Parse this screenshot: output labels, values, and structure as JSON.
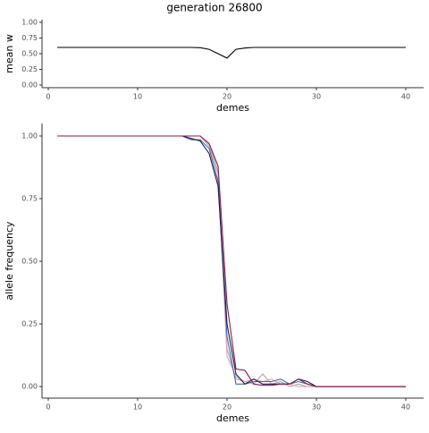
{
  "title": "generation 26800",
  "chart_data": [
    {
      "type": "line",
      "xlabel": "demes",
      "ylabel": "mean w",
      "x": [
        1,
        2,
        3,
        4,
        5,
        6,
        7,
        8,
        9,
        10,
        11,
        12,
        13,
        14,
        15,
        16,
        17,
        18,
        19,
        20,
        21,
        22,
        23,
        24,
        25,
        26,
        27,
        28,
        29,
        30,
        31,
        32,
        33,
        34,
        35,
        36,
        37,
        38,
        39,
        40
      ],
      "series": [
        {
          "color": "#000000",
          "values": [
            0.6,
            0.6,
            0.6,
            0.6,
            0.6,
            0.6,
            0.6,
            0.6,
            0.6,
            0.6,
            0.6,
            0.6,
            0.6,
            0.6,
            0.6,
            0.6,
            0.595,
            0.57,
            0.5,
            0.43,
            0.57,
            0.59,
            0.6,
            0.6,
            0.6,
            0.6,
            0.6,
            0.6,
            0.6,
            0.6,
            0.6,
            0.6,
            0.6,
            0.6,
            0.6,
            0.6,
            0.6,
            0.6,
            0.6,
            0.6
          ]
        }
      ],
      "xlim": [
        -0.7,
        42
      ],
      "xticks": [
        0,
        10,
        20,
        30,
        40
      ],
      "ylim": [
        -0.043,
        1.043
      ],
      "yticks": [
        {
          "value": 0,
          "label": "0.00"
        },
        {
          "value": 0.25,
          "label": "0.25"
        },
        {
          "value": 0.5,
          "label": "0.50"
        },
        {
          "value": 0.75,
          "label": "0.75"
        },
        {
          "value": 1,
          "label": "1.00"
        }
      ]
    },
    {
      "type": "line",
      "xlabel": "demes",
      "ylabel": "allele frequency",
      "x": [
        1,
        2,
        3,
        4,
        5,
        6,
        7,
        8,
        9,
        10,
        11,
        12,
        13,
        14,
        15,
        16,
        17,
        18,
        19,
        20,
        21,
        22,
        23,
        24,
        25,
        26,
        27,
        28,
        29,
        30,
        31,
        32,
        33,
        34,
        35,
        36,
        37,
        38,
        39,
        40
      ],
      "series": [
        {
          "color": "#aaaaaa",
          "values": [
            1,
            1,
            1,
            1,
            1,
            1,
            1,
            1,
            1,
            1,
            1,
            1,
            1,
            1,
            1,
            1,
            1,
            0.96,
            0.85,
            0.15,
            0.03,
            0.02,
            0.01,
            0.05,
            0.01,
            0.02,
            0,
            0.01,
            0,
            0,
            0,
            0,
            0,
            0,
            0,
            0,
            0,
            0,
            0,
            0
          ]
        },
        {
          "color": "#e3a3b6",
          "values": [
            1,
            1,
            1,
            1,
            1,
            1,
            1,
            1,
            1,
            1,
            1,
            1,
            1,
            1,
            1,
            1,
            1,
            0.97,
            0.86,
            0.12,
            0.04,
            0.02,
            0.03,
            0.02,
            0.03,
            0.01,
            0.01,
            0,
            0,
            0,
            0,
            0,
            0,
            0,
            0,
            0,
            0,
            0,
            0,
            0
          ]
        },
        {
          "color": "#3a6ea5",
          "values": [
            1,
            1,
            1,
            1,
            1,
            1,
            1,
            1,
            1,
            1,
            1,
            1,
            1,
            1,
            1,
            0.985,
            0.985,
            0.95,
            0.82,
            0.2,
            0.01,
            0.01,
            0.02,
            0.02,
            0.02,
            0.03,
            0.01,
            0.02,
            0.01,
            0,
            0,
            0,
            0,
            0,
            0,
            0,
            0,
            0,
            0,
            0
          ]
        },
        {
          "color": "#1a1a4e",
          "values": [
            1,
            1,
            1,
            1,
            1,
            1,
            1,
            1,
            1,
            1,
            1,
            1,
            1,
            1,
            1,
            0.99,
            0.98,
            0.93,
            0.8,
            0.25,
            0.05,
            0.01,
            0.03,
            0.01,
            0.01,
            0.01,
            0.01,
            0.03,
            0.02,
            0,
            0,
            0,
            0,
            0,
            0,
            0,
            0,
            0,
            0,
            0
          ]
        },
        {
          "color": "#8b1a4a",
          "values": [
            1,
            1,
            1,
            1,
            1,
            1,
            1,
            1,
            1,
            1,
            1,
            1,
            1,
            1,
            1,
            1,
            1,
            0.97,
            0.88,
            0.33,
            0.07,
            0.065,
            0.01,
            0.005,
            0.005,
            0.01,
            0.01,
            0.03,
            0.01,
            0,
            0,
            0,
            0,
            0,
            0,
            0,
            0,
            0,
            0,
            0
          ]
        }
      ],
      "xlim": [
        -0.7,
        42
      ],
      "xticks": [
        0,
        10,
        20,
        30,
        40
      ],
      "ylim": [
        -0.046,
        1.05
      ],
      "yticks": [
        {
          "value": 0,
          "label": "0.00"
        },
        {
          "value": 0.25,
          "label": "0.25"
        },
        {
          "value": 0.5,
          "label": "0.50"
        },
        {
          "value": 0.75,
          "label": "0.75"
        },
        {
          "value": 1,
          "label": "1.00"
        }
      ]
    }
  ]
}
